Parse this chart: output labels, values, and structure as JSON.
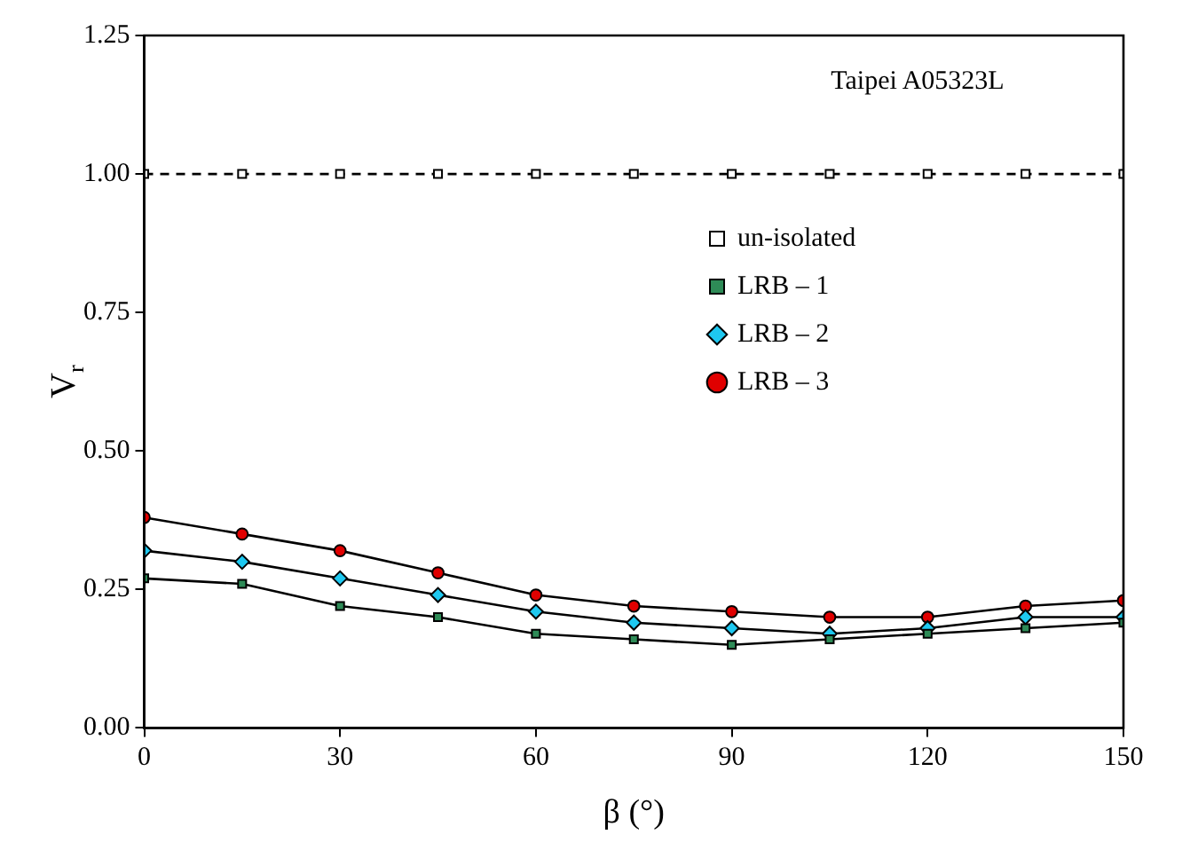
{
  "chart_data": {
    "type": "line",
    "xlabel": "β (°)",
    "ylabel": "V$_{r}$",
    "annotations": [
      "Taipei A05323L"
    ],
    "x": [
      0,
      15,
      30,
      45,
      60,
      75,
      90,
      105,
      120,
      135,
      150
    ],
    "xlim": [
      0,
      150
    ],
    "xticks": [
      0,
      30,
      60,
      90,
      120,
      150
    ],
    "ylim": [
      0,
      1.25
    ],
    "yticks": [
      {
        "value": 0,
        "label": "0.00"
      },
      {
        "value": 0.25,
        "label": "0.25"
      },
      {
        "value": 0.5,
        "label": "0.50"
      },
      {
        "value": 0.75,
        "label": "0.75"
      },
      {
        "value": 1,
        "label": "1.00"
      },
      {
        "value": 1.25,
        "label": "1.25"
      }
    ],
    "grid": false,
    "legend": "right",
    "series": [
      {
        "name": "un-isolated",
        "color": "#ffffff",
        "marker": "square",
        "line_style": "dashed",
        "values": [
          1,
          1,
          1,
          1,
          1,
          1,
          1,
          1,
          1,
          1,
          1
        ]
      },
      {
        "name": "LRB – 1",
        "color": "#2e8b57",
        "marker": "square",
        "line_style": "solid",
        "values": [
          0.27,
          0.26,
          0.22,
          0.2,
          0.17,
          0.16,
          0.15,
          0.16,
          0.17,
          0.18,
          0.19
        ]
      },
      {
        "name": "LRB – 2",
        "color": "#1ec8f0",
        "marker": "diamond",
        "line_style": "solid",
        "values": [
          0.32,
          0.3,
          0.27,
          0.24,
          0.21,
          0.19,
          0.18,
          0.17,
          0.18,
          0.2,
          0.2
        ]
      },
      {
        "name": "LRB – 3",
        "color": "#e00000",
        "marker": "circle",
        "line_style": "solid",
        "values": [
          0.38,
          0.35,
          0.32,
          0.28,
          0.24,
          0.22,
          0.21,
          0.2,
          0.2,
          0.22,
          0.23
        ]
      }
    ]
  }
}
